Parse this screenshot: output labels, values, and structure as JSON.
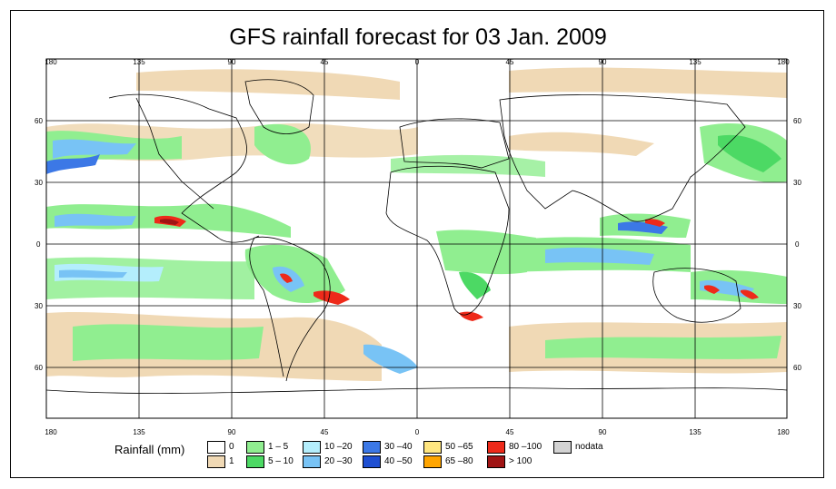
{
  "title": "GFS rainfall forecast for 03 Jan. 2009",
  "longitude_ticks": [
    "180",
    "135",
    "90",
    "45",
    "0",
    "45",
    "90",
    "135",
    "180"
  ],
  "latitude_ticks": [
    "60",
    "30",
    "0",
    "30",
    "60"
  ],
  "legend": {
    "label": "Rainfall (mm)",
    "items": [
      {
        "text": "0",
        "color": "#ffffff"
      },
      {
        "text": "1",
        "color": "#f0d9b5"
      },
      {
        "text": "1 – 5",
        "color": "#90ee90"
      },
      {
        "text": "5 – 10",
        "color": "#4cd964"
      },
      {
        "text": "10 –20",
        "color": "#b4eefc"
      },
      {
        "text": "20 –30",
        "color": "#78c3f5"
      },
      {
        "text": "30 –40",
        "color": "#3c78e6"
      },
      {
        "text": "40 –50",
        "color": "#1e4fd2"
      },
      {
        "text": "50 –65",
        "color": "#ffe680"
      },
      {
        "text": "65 –80",
        "color": "#ffa500"
      },
      {
        "text": "80 –100",
        "color": "#ee2a1a"
      },
      {
        "text": "> 100",
        "color": "#a01414"
      },
      {
        "text": "nodata",
        "color": "#d3d3d3"
      }
    ]
  }
}
